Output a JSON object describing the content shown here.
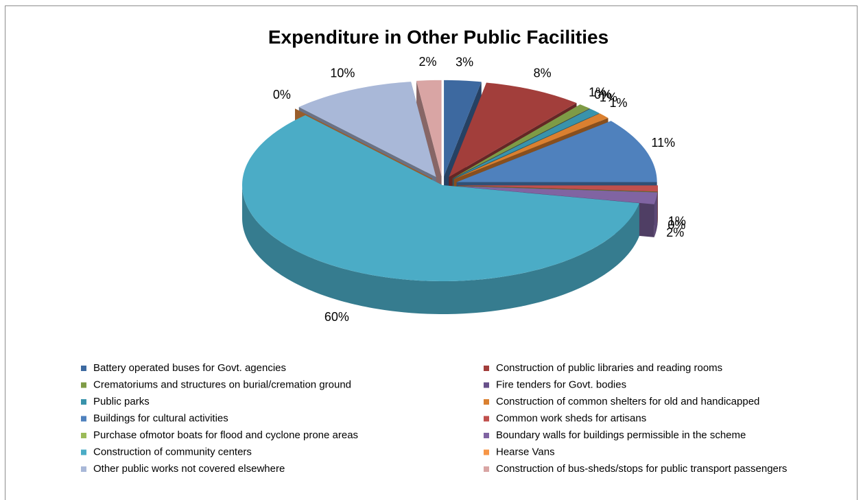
{
  "chart_data": {
    "type": "pie",
    "title": "Expenditure in Other Public Facilities",
    "categories": [
      "Battery operated buses for Govt. agencies",
      "Construction of public libraries and reading rooms",
      "Crematoriums and structures on burial/cremation ground",
      "Fire tenders for Govt. bodies",
      "Public parks",
      "Construction of common shelters for old and handicapped",
      "Buildings for cultural activities",
      "Common work sheds for artisans",
      "Purchase ofmotor boats for flood and cyclone prone areas",
      "Boundary walls for buildings permissible in the scheme",
      "Construction of community centers",
      "Hearse Vans",
      "Other public works not covered elsewhere",
      "Construction of bus-sheds/stops for public transport passengers"
    ],
    "values": [
      3,
      8,
      1,
      0,
      1,
      1,
      11,
      1,
      0,
      2,
      60,
      0,
      10,
      2
    ],
    "value_labels": [
      "3%",
      "8%",
      "1%",
      "0%",
      "1%",
      "1%",
      "11%",
      "1%",
      "0%",
      "2%",
      "60%",
      "0%",
      "10%",
      "2%"
    ],
    "colors": [
      "#3D69A0",
      "#A23E3B",
      "#7E9B46",
      "#67508A",
      "#3993AB",
      "#DA8030",
      "#4F81BD",
      "#C0504D",
      "#9BBB59",
      "#8064A2",
      "#4BACC6",
      "#F79646",
      "#A9B8D8",
      "#D9A5A4"
    ],
    "legend": "bottom"
  }
}
